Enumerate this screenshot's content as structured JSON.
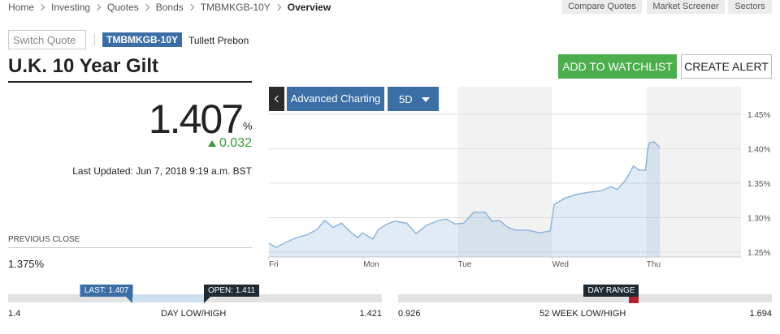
{
  "breadcrumb": [
    "Home",
    "Investing",
    "Quotes",
    "Bonds",
    "TMBMKGB-10Y",
    "Overview"
  ],
  "top_buttons": [
    "Compare Quotes",
    "Market Screener",
    "Sectors"
  ],
  "search_placeholder": "Switch Quote",
  "symbol": "TMBMKGB-10Y",
  "source": "Tullett Prebon",
  "title": "U.K. 10 Year Gilt",
  "actions": [
    "ADD TO WATCHLIST",
    "CREATE ALERT"
  ],
  "quote": {
    "value": "1.407",
    "unit": "%",
    "change": "0.032",
    "last_updated": "Last Updated: Jun 7, 2018 9:19 a.m. BST"
  },
  "previous_close": {
    "label": "PREVIOUS CLOSE",
    "value": "1.375%"
  },
  "chart_toolbar": {
    "advanced": "Advanced Charting",
    "range": "5D"
  },
  "chart_data": {
    "type": "area",
    "x": [
      0,
      0.08,
      0.16,
      0.29,
      0.4,
      0.51,
      0.59,
      0.68,
      0.77,
      0.85,
      0.94,
      0.99,
      1.1,
      1.16,
      1.24,
      1.33,
      1.46,
      1.56,
      1.67,
      1.8,
      1.88,
      1.97,
      2.06,
      2.17,
      2.29,
      2.36,
      2.44,
      2.53,
      2.61,
      2.74,
      2.87,
      2.98,
      3.02,
      3.13,
      3.26,
      3.39,
      3.52,
      3.62,
      3.69,
      3.78,
      3.86,
      3.92,
      3.99,
      4.01,
      4.03,
      4.08,
      4.14
    ],
    "values": [
      1.263,
      1.257,
      1.263,
      1.271,
      1.275,
      1.283,
      1.296,
      1.286,
      1.292,
      1.281,
      1.271,
      1.278,
      1.269,
      1.283,
      1.29,
      1.295,
      1.292,
      1.277,
      1.289,
      1.296,
      1.298,
      1.291,
      1.292,
      1.308,
      1.308,
      1.295,
      1.296,
      1.286,
      1.282,
      1.282,
      1.278,
      1.281,
      1.319,
      1.328,
      1.334,
      1.337,
      1.339,
      1.345,
      1.341,
      1.355,
      1.375,
      1.369,
      1.369,
      1.398,
      1.409,
      1.41,
      1.402
    ],
    "color": "#8fb6dd",
    "xlim": [
      0,
      5
    ],
    "xticks": [
      {
        "value": 0,
        "label": "Fri"
      },
      {
        "value": 1,
        "label": "Mon"
      },
      {
        "value": 2,
        "label": "Tue"
      },
      {
        "value": 3,
        "label": "Wed"
      },
      {
        "value": 4,
        "label": "Thu"
      }
    ],
    "ylim": [
      1.243,
      1.49
    ],
    "yticks": [
      {
        "value": 1.25,
        "label": "1.25%"
      },
      {
        "value": 1.3,
        "label": "1.30%"
      },
      {
        "value": 1.35,
        "label": "1.35%"
      },
      {
        "value": 1.4,
        "label": "1.40%"
      },
      {
        "value": 1.45,
        "label": "1.45%"
      }
    ],
    "grid": true
  },
  "day_range": {
    "last": {
      "value": 1.407,
      "label": "LAST: 1.407"
    },
    "open": {
      "value": 1.411,
      "label": "OPEN: 1.411"
    },
    "low": 1.4,
    "label": "DAY LOW/HIGH",
    "high": 1.421
  },
  "week52": {
    "flag": "DAY RANGE",
    "low": 0.926,
    "label": "52 WEEK LOW/HIGH",
    "high": 1.694
  }
}
